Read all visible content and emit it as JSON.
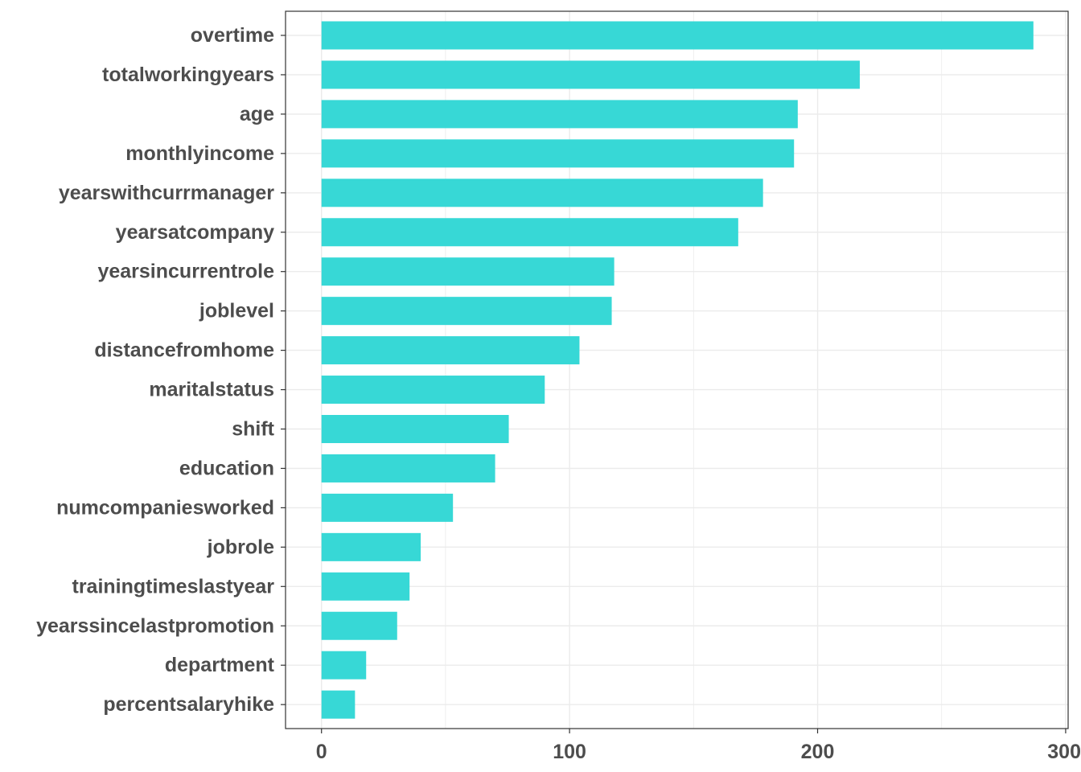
{
  "chart_data": {
    "type": "bar",
    "orientation": "horizontal",
    "categories": [
      "overtime",
      "totalworkingyears",
      "age",
      "monthlyincome",
      "yearswithcurrmanager",
      "yearsatcompany",
      "yearsincurrentrole",
      "joblevel",
      "distancefromhome",
      "maritalstatus",
      "shift",
      "education",
      "numcompaniesworked",
      "jobrole",
      "trainingtimeslastyear",
      "yearssincelastpromotion",
      "department",
      "percentsalaryhike"
    ],
    "values": [
      287,
      217,
      192,
      190.5,
      178,
      168,
      118,
      117,
      104,
      90,
      75.5,
      70,
      53,
      40,
      35.5,
      30.5,
      18,
      13.5
    ],
    "x_ticks": [
      0,
      100,
      200,
      300
    ],
    "xlim": [
      -14.5,
      301
    ],
    "title": "",
    "xlabel": "",
    "ylabel": "",
    "grid": true,
    "bar_color": "#37d8d6",
    "axis_text_color": "#4d4d4d",
    "grid_color": "#ebebeb"
  }
}
